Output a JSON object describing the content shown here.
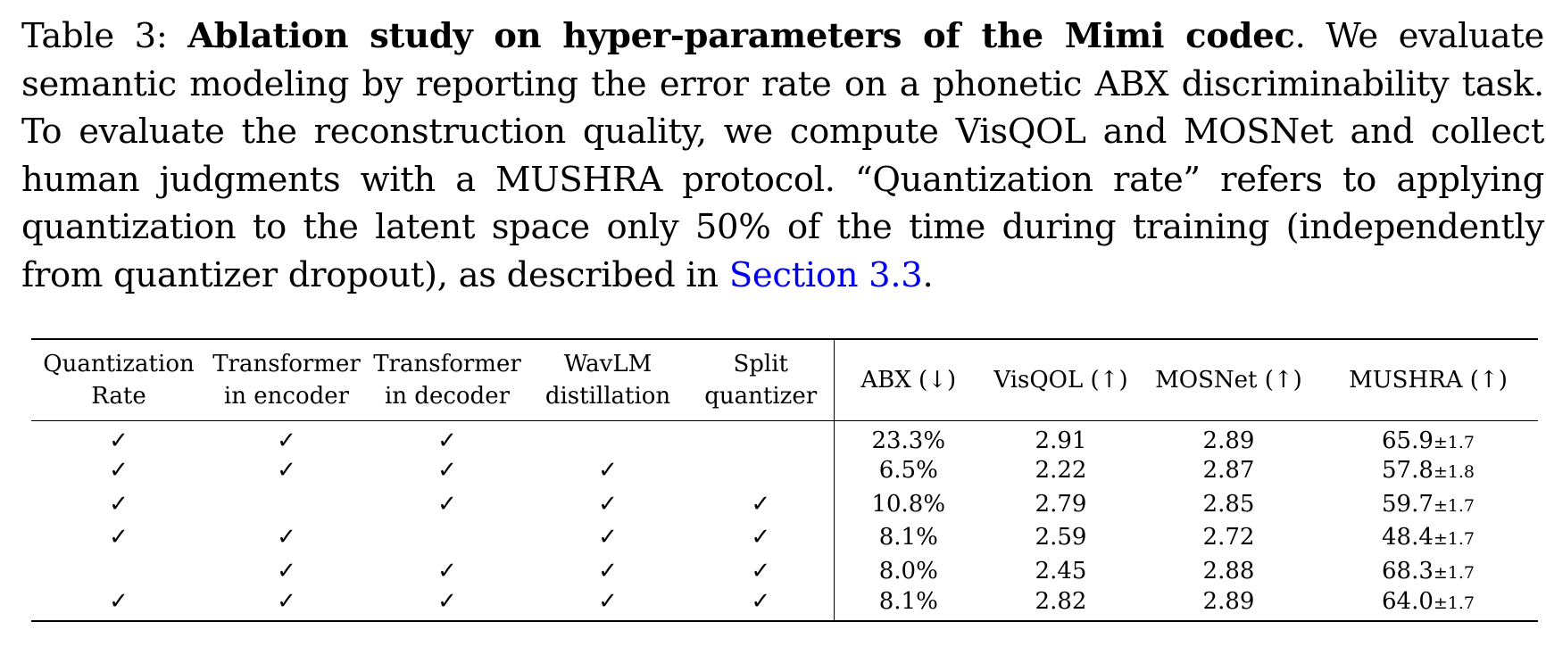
{
  "caption": {
    "label": "Table 3: ",
    "title": "Ablation study on hyper-parameters of the Mimi codec",
    "body_1": ". We evaluate semantic modeling by reporting the error rate on a phonetic ABX discriminability task. To evaluate the reconstruction quality, we compute VisQOL and MOSNet and collect human judgments with a MUSHRA protocol. “Quantization rate” refers to applying quantization to the latent space only 50% of the time during training (independently from quantizer dropout), as described in ",
    "link": "Section  3.3",
    "body_2": "."
  },
  "table": {
    "headers": [
      {
        "line1": "Quantization",
        "line2": "Rate"
      },
      {
        "line1": "Transformer",
        "line2": "in encoder"
      },
      {
        "line1": "Transformer",
        "line2": "in decoder"
      },
      {
        "line1": "WavLM",
        "line2": "distillation"
      },
      {
        "line1": "Split",
        "line2": "quantizer"
      },
      {
        "line1": "ABX (↓)",
        "line2": ""
      },
      {
        "line1": "VisQOL (↑)",
        "line2": ""
      },
      {
        "line1": "MOSNet (↑)",
        "line2": ""
      },
      {
        "line1": "MUSHRA (↑)",
        "line2": ""
      }
    ],
    "check_symbol": "✓",
    "rows": [
      {
        "flags": [
          true,
          true,
          true,
          false,
          false
        ],
        "abx": "23.3%",
        "visqol": "2.91",
        "mosnet": "2.89",
        "mushra": "65.9",
        "mushra_ci": "±1.7"
      },
      {
        "flags": [
          true,
          true,
          true,
          true,
          false
        ],
        "abx": "6.5%",
        "visqol": "2.22",
        "mosnet": "2.87",
        "mushra": "57.8",
        "mushra_ci": "±1.8"
      },
      {
        "flags": [
          true,
          false,
          true,
          true,
          true
        ],
        "abx": "10.8%",
        "visqol": "2.79",
        "mosnet": "2.85",
        "mushra": "59.7",
        "mushra_ci": "±1.7"
      },
      {
        "flags": [
          true,
          true,
          false,
          true,
          true
        ],
        "abx": "8.1%",
        "visqol": "2.59",
        "mosnet": "2.72",
        "mushra": "48.4",
        "mushra_ci": "±1.7"
      },
      {
        "flags": [
          false,
          true,
          true,
          true,
          true
        ],
        "abx": "8.0%",
        "visqol": "2.45",
        "mosnet": "2.88",
        "mushra": "68.3",
        "mushra_ci": "±1.7"
      },
      {
        "flags": [
          true,
          true,
          true,
          true,
          true
        ],
        "abx": "8.1%",
        "visqol": "2.82",
        "mosnet": "2.89",
        "mushra": "64.0",
        "mushra_ci": "±1.7"
      }
    ]
  },
  "colors": {
    "link": "#0000ee",
    "text": "#000000"
  }
}
